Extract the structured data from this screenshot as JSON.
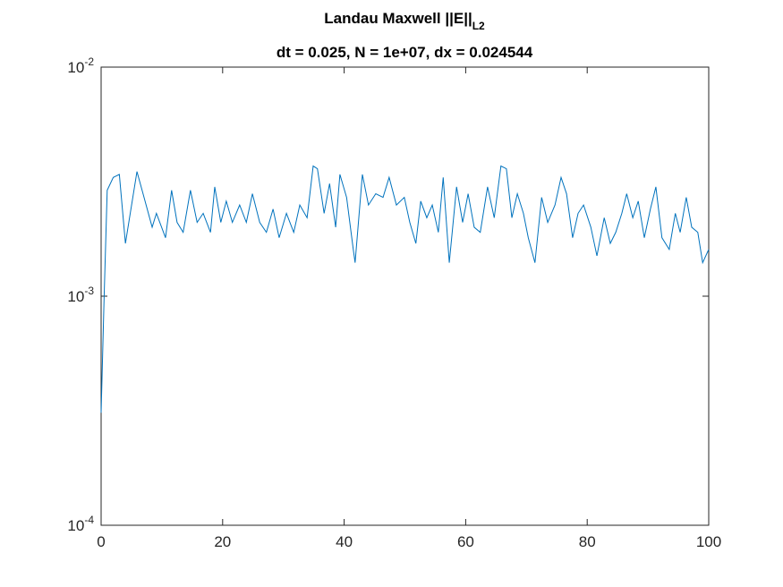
{
  "chart_data": {
    "type": "line",
    "title": "Landau Maxwell ||E||",
    "title_subscript": "L2",
    "subtitle": "dt = 0.025, N = 1e+07, dx = 0.024544",
    "log_y": true,
    "xlim": [
      0,
      100
    ],
    "xticks": [
      0,
      20,
      40,
      60,
      80,
      100
    ],
    "ylim": [
      0.0001,
      0.01
    ],
    "yticks": [
      {
        "value": 0.0001,
        "label": "10",
        "exponent": "-4"
      },
      {
        "value": 0.001,
        "label": "10",
        "exponent": "-3"
      },
      {
        "value": 0.01,
        "label": "10",
        "exponent": "-2"
      }
    ],
    "series": [
      {
        "color": "#0072bd",
        "x": [
          0,
          0.5,
          1,
          2,
          3,
          4,
          5.9,
          6.9,
          8.4,
          9.1,
          10.6,
          11.6,
          12.5,
          13.5,
          14.7,
          15.8,
          16.8,
          18,
          18.7,
          19.7,
          20.6,
          21.6,
          22.8,
          23.9,
          24.9,
          26.1,
          27.2,
          28.3,
          29.3,
          30.5,
          31.7,
          32.7,
          33.9,
          34.9,
          35.6,
          36.7,
          37.6,
          38.6,
          39.3,
          40.4,
          41.5,
          41.8,
          43,
          44,
          45.2,
          46.4,
          47.4,
          48.6,
          49.9,
          50.8,
          51.8,
          52.6,
          53.6,
          54.5,
          55.5,
          56.3,
          57.3,
          58.5,
          59.5,
          60.4,
          61.4,
          62.4,
          63.6,
          64.7,
          65.8,
          66.7,
          67.6,
          68.5,
          69.5,
          70.3,
          71.4,
          72.5,
          73.5,
          74.7,
          75.7,
          76.6,
          77.6,
          78.5,
          79.4,
          80.6,
          81.6,
          82.8,
          83.8,
          84.7,
          85.7,
          86.5,
          87.5,
          88.4,
          89.4,
          90.4,
          91.3,
          92.3,
          93.5,
          94.5,
          95.3,
          96.3,
          97.2,
          98.2,
          99,
          100
        ],
        "values": [
          0.00031,
          0.001,
          0.0029,
          0.0033,
          0.0034,
          0.0017,
          0.0035,
          0.0028,
          0.002,
          0.0023,
          0.0018,
          0.0029,
          0.0021,
          0.0019,
          0.0029,
          0.0021,
          0.0023,
          0.0019,
          0.003,
          0.0021,
          0.0026,
          0.0021,
          0.0025,
          0.0021,
          0.0028,
          0.0021,
          0.0019,
          0.0024,
          0.0018,
          0.0023,
          0.0019,
          0.0025,
          0.0022,
          0.0037,
          0.0036,
          0.0023,
          0.0031,
          0.002,
          0.0034,
          0.0027,
          0.0016,
          0.0014,
          0.0034,
          0.0025,
          0.0028,
          0.0027,
          0.0033,
          0.0025,
          0.0027,
          0.0021,
          0.0017,
          0.0026,
          0.0022,
          0.0025,
          0.0019,
          0.0033,
          0.0014,
          0.003,
          0.0021,
          0.0028,
          0.002,
          0.0019,
          0.003,
          0.0022,
          0.0037,
          0.0036,
          0.0022,
          0.0028,
          0.0023,
          0.0018,
          0.0014,
          0.0027,
          0.0021,
          0.0025,
          0.0033,
          0.0028,
          0.0018,
          0.0023,
          0.0025,
          0.002,
          0.0015,
          0.0022,
          0.0017,
          0.0019,
          0.0023,
          0.0028,
          0.0022,
          0.0026,
          0.0018,
          0.0024,
          0.003,
          0.0018,
          0.0016,
          0.0023,
          0.0019,
          0.0027,
          0.002,
          0.0019,
          0.0014,
          0.0016
        ]
      }
    ]
  }
}
